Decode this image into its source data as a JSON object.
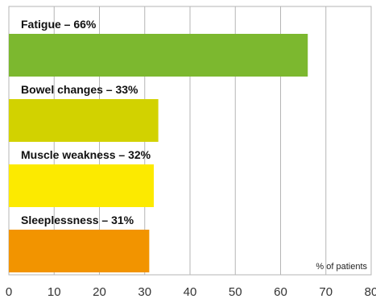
{
  "chart_data": {
    "type": "bar",
    "orientation": "horizontal",
    "categories": [
      "Fatigue – 66%",
      "Bowel changes – 33%",
      "Muscle weakness – 32%",
      "Sleeplessness – 31%"
    ],
    "values": [
      66,
      33,
      32,
      31
    ],
    "colors": [
      "#7cb82f",
      "#d2d200",
      "#fcea00",
      "#f29400"
    ],
    "xlim": [
      0,
      80
    ],
    "x_ticks": [
      "0",
      "10",
      "20",
      "30",
      "40",
      "50",
      "60",
      "70",
      "80"
    ],
    "x_unit_label": "% of patients",
    "grid": "vertical",
    "legend": "none"
  }
}
